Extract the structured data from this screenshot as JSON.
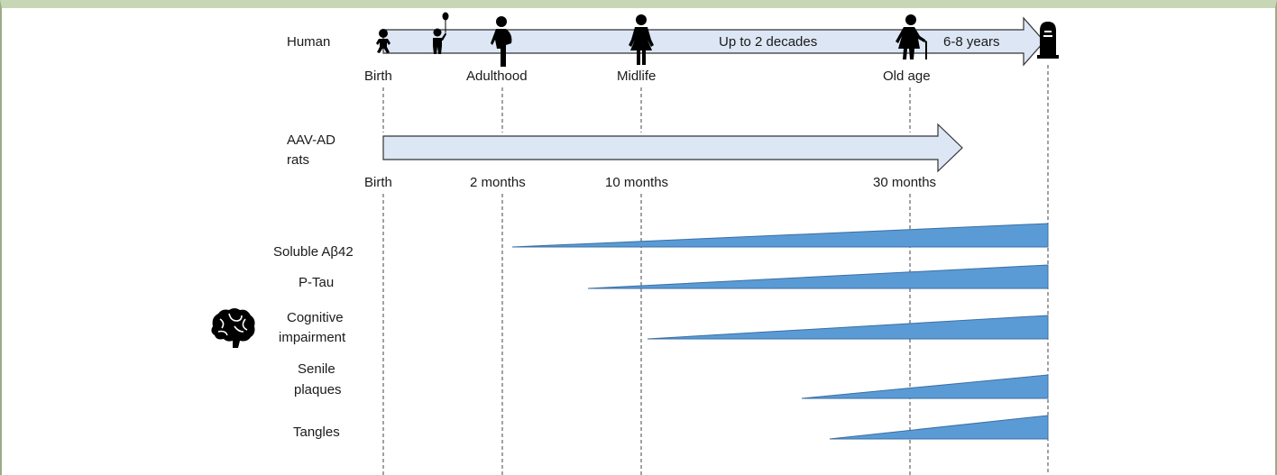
{
  "human": {
    "label": "Human",
    "milestones": [
      "Birth",
      "Adulthood",
      "Midlife",
      "Old age"
    ],
    "span_midlife_oldage": "Up to 2 decades",
    "span_oldage_death": "6-8 years"
  },
  "rats": {
    "label_line1": "AAV-AD",
    "label_line2": "rats",
    "milestones": [
      "Birth",
      "2 months",
      "10 months",
      "30 months"
    ]
  },
  "markers": [
    {
      "line1": "Soluble Aβ42",
      "line2": ""
    },
    {
      "line1": "P-Tau",
      "line2": ""
    },
    {
      "line1": "Cognitive",
      "line2": "impairment"
    },
    {
      "line1": "Senile",
      "line2": "plaques"
    },
    {
      "line1": "Tangles",
      "line2": ""
    }
  ],
  "icons": [
    "baby-icon",
    "child-with-balloon-icon",
    "pregnant-woman-icon",
    "woman-icon",
    "elderly-woman-icon",
    "tombstone-icon",
    "brain-icon"
  ],
  "colors": {
    "arrow_fill": "#dce6f4",
    "wedge_fill": "#5b9bd5",
    "frame": "#c7d6b4"
  }
}
